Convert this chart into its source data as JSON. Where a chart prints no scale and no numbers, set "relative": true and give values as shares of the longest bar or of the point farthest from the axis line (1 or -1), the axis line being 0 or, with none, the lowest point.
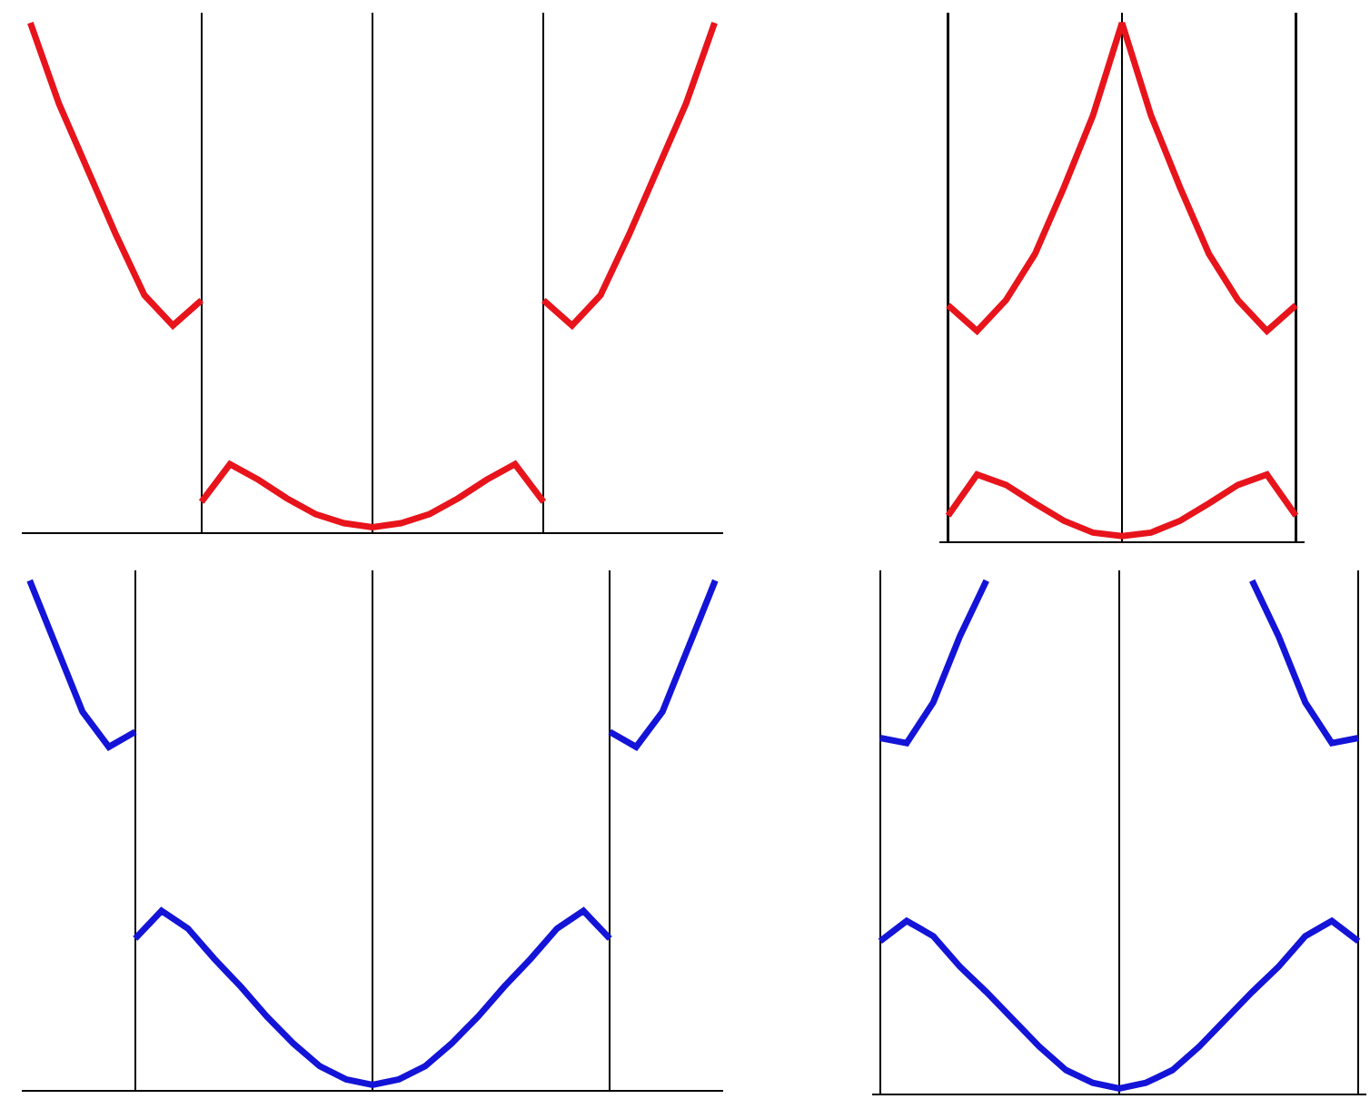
{
  "chart_data": [
    {
      "type": "line",
      "relative": true,
      "grid": "x",
      "categories": [
        null,
        null,
        null,
        null,
        null,
        null,
        null,
        null,
        null,
        null,
        null,
        null,
        null,
        null,
        null,
        null,
        null,
        null,
        null,
        null,
        null,
        null,
        null,
        null,
        null
      ],
      "series": [
        {
          "color": "#e8141c",
          "values": [
            1.0,
            0.84,
            0.71,
            0.58,
            0.46,
            0.4,
            0.45,
            null,
            null,
            null,
            null,
            null,
            null,
            null,
            null,
            null,
            null,
            null,
            null,
            null,
            null,
            null,
            null,
            null,
            null
          ]
        },
        {
          "color": "#e8141c",
          "values": [
            null,
            null,
            null,
            null,
            null,
            null,
            0.05,
            0.125,
            0.094,
            0.057,
            0.026,
            0.008,
            0,
            0.008,
            0.026,
            0.057,
            0.094,
            0.125,
            0.05,
            null,
            null,
            null,
            null,
            null,
            null
          ]
        },
        {
          "color": "#e8141c",
          "values": [
            null,
            null,
            null,
            null,
            null,
            null,
            null,
            null,
            null,
            null,
            null,
            null,
            null,
            null,
            null,
            null,
            null,
            null,
            0.45,
            0.4,
            0.46,
            0.58,
            0.71,
            0.84,
            1.0
          ]
        }
      ]
    },
    {
      "type": "line",
      "relative": true,
      "grid": "x",
      "categories": [
        null,
        null,
        null,
        null,
        null,
        null,
        null,
        null,
        null,
        null,
        null,
        null,
        null
      ],
      "series": [
        {
          "color": "#e8141c",
          "values": [
            0.45,
            0.4,
            0.46,
            0.55,
            0.68,
            0.82,
            1.0,
            0.82,
            0.68,
            0.55,
            0.46,
            0.4,
            0.45
          ]
        },
        {
          "color": "#e8141c",
          "values": [
            0.04,
            0.12,
            0.1,
            0.064,
            0.03,
            0.007,
            0,
            0.007,
            0.03,
            0.064,
            0.1,
            0.12,
            0.04
          ]
        }
      ]
    },
    {
      "type": "line",
      "relative": true,
      "grid": "x",
      "categories": [
        null,
        null,
        null,
        null,
        null,
        null,
        null,
        null,
        null,
        null,
        null,
        null,
        null,
        null,
        null,
        null,
        null,
        null,
        null,
        null,
        null,
        null,
        null,
        null,
        null,
        null,
        null
      ],
      "series": [
        {
          "color": "#1414d8",
          "values": [
            1.0,
            0.87,
            0.74,
            0.67,
            0.7,
            null,
            null,
            null,
            null,
            null,
            null,
            null,
            null,
            null,
            null,
            null,
            null,
            null,
            null,
            null,
            null,
            null,
            null,
            null,
            null,
            null,
            null
          ]
        },
        {
          "color": "#1414d8",
          "values": [
            null,
            null,
            null,
            null,
            0.29,
            0.345,
            0.31,
            0.25,
            0.195,
            0.135,
            0.082,
            0.037,
            0.011,
            0,
            0.011,
            0.037,
            0.082,
            0.135,
            0.195,
            0.25,
            0.31,
            0.345,
            0.29,
            null,
            null,
            null,
            null
          ]
        },
        {
          "color": "#1414d8",
          "values": [
            null,
            null,
            null,
            null,
            null,
            null,
            null,
            null,
            null,
            null,
            null,
            null,
            null,
            null,
            null,
            null,
            null,
            null,
            null,
            null,
            null,
            null,
            0.7,
            0.67,
            0.74,
            0.87,
            1.0
          ]
        }
      ]
    },
    {
      "type": "line",
      "relative": true,
      "grid": "x",
      "categories": [
        null,
        null,
        null,
        null,
        null,
        null,
        null,
        null,
        null,
        null,
        null,
        null,
        null,
        null,
        null,
        null,
        null,
        null,
        null
      ],
      "series": [
        {
          "color": "#1414d8",
          "values": [
            0.69,
            0.68,
            0.76,
            0.89,
            1.0,
            null,
            null,
            null,
            null,
            null,
            null,
            null,
            null,
            null,
            1.0,
            0.89,
            0.76,
            0.68,
            0.69
          ]
        },
        {
          "color": "#1414d8",
          "values": [
            0.29,
            0.33,
            0.3,
            0.24,
            0.19,
            0.136,
            0.082,
            0.036,
            0.011,
            0,
            0.011,
            0.036,
            0.082,
            0.136,
            0.19,
            0.24,
            0.3,
            0.33,
            0.29
          ]
        }
      ]
    }
  ]
}
